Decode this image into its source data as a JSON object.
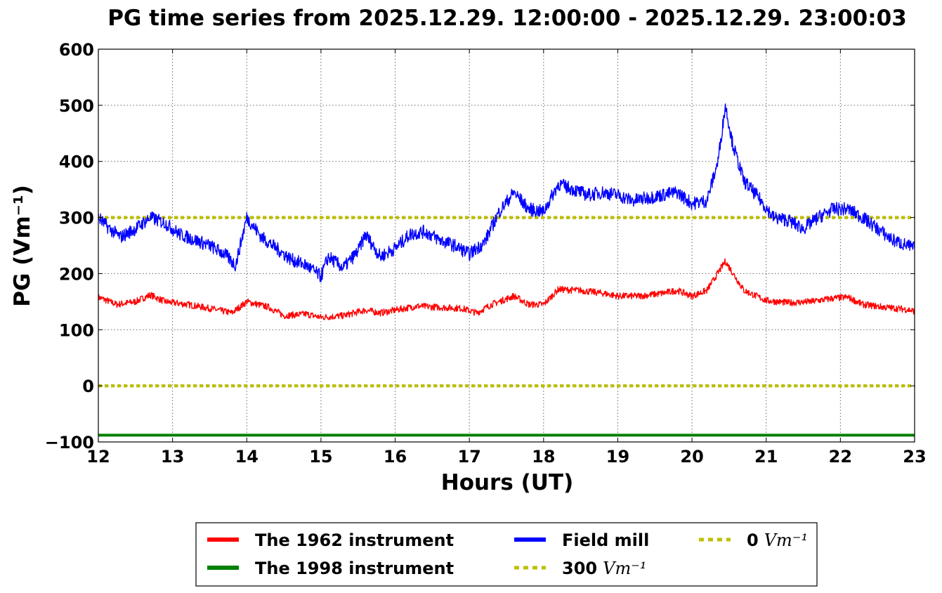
{
  "chart_data": {
    "type": "line",
    "title": "PG time series from 2025.12.29. 12:00:00 - 2025.12.29. 23:00:03",
    "xlabel": "Hours (UT)",
    "ylabel": "PG (Vm⁻¹)",
    "xlim": [
      12,
      23
    ],
    "ylim": [
      -100,
      600
    ],
    "xticks": [
      12,
      13,
      14,
      15,
      16,
      17,
      18,
      19,
      20,
      21,
      22,
      23
    ],
    "yticks": [
      -100,
      0,
      100,
      200,
      300,
      400,
      500,
      600
    ],
    "ytick_labels": [
      "−100",
      "0",
      "100",
      "200",
      "300",
      "400",
      "500",
      "600"
    ],
    "grid": true,
    "legend_position": "bottom-center",
    "legend": [
      {
        "label": "The 1962 instrument",
        "color": "#ff0000",
        "style": "solid"
      },
      {
        "label": "The 1998 instrument",
        "color": "#008000",
        "style": "solid"
      },
      {
        "label": "Field mill",
        "color": "#0000ff",
        "style": "solid"
      },
      {
        "label": "300",
        "unit": "Vm⁻¹",
        "color": "#bfbf00",
        "style": "dotted"
      },
      {
        "label": "0",
        "unit": "Vm⁻¹",
        "color": "#bfbf00",
        "style": "dotted"
      }
    ],
    "series": [
      {
        "name": "The 1962 instrument",
        "color": "#ff0000",
        "x": [
          12.0,
          12.25,
          12.5,
          12.7,
          12.9,
          13.2,
          13.5,
          13.8,
          14.0,
          14.3,
          14.5,
          14.8,
          15.0,
          15.3,
          15.6,
          15.8,
          16.0,
          16.3,
          16.6,
          16.9,
          17.1,
          17.3,
          17.6,
          17.8,
          18.0,
          18.2,
          18.5,
          18.8,
          19.0,
          19.3,
          19.6,
          19.8,
          20.0,
          20.2,
          20.45,
          20.7,
          21.0,
          21.3,
          21.6,
          21.9,
          22.1,
          22.3,
          22.6,
          22.9,
          23.0
        ],
        "y": [
          158,
          145,
          150,
          162,
          150,
          145,
          138,
          130,
          150,
          140,
          125,
          128,
          122,
          125,
          135,
          130,
          135,
          142,
          140,
          138,
          130,
          145,
          160,
          145,
          145,
          172,
          170,
          165,
          160,
          160,
          165,
          170,
          160,
          170,
          222,
          170,
          152,
          148,
          150,
          156,
          158,
          145,
          140,
          136,
          133
        ]
      },
      {
        "name": "The 1998 instrument",
        "color": "#008000",
        "x": [
          12.0,
          23.0
        ],
        "y": [
          -88,
          -88
        ]
      },
      {
        "name": "Field mill",
        "color": "#0000ff",
        "x": [
          12.0,
          12.15,
          12.3,
          12.5,
          12.7,
          12.9,
          13.1,
          13.3,
          13.5,
          13.7,
          13.85,
          14.0,
          14.2,
          14.4,
          14.6,
          14.8,
          15.0,
          15.1,
          15.3,
          15.5,
          15.6,
          15.8,
          16.0,
          16.2,
          16.4,
          16.6,
          16.8,
          17.0,
          17.2,
          17.4,
          17.6,
          17.8,
          18.0,
          18.2,
          18.4,
          18.6,
          18.8,
          19.0,
          19.2,
          19.4,
          19.6,
          19.8,
          20.0,
          20.2,
          20.35,
          20.45,
          20.55,
          20.7,
          20.9,
          21.1,
          21.3,
          21.5,
          21.7,
          21.9,
          22.1,
          22.3,
          22.5,
          22.7,
          22.9,
          23.0
        ],
        "y": [
          300,
          280,
          265,
          280,
          300,
          290,
          270,
          260,
          250,
          235,
          215,
          300,
          265,
          245,
          225,
          215,
          195,
          230,
          210,
          240,
          270,
          230,
          245,
          270,
          275,
          260,
          250,
          235,
          255,
          310,
          345,
          315,
          310,
          360,
          350,
          340,
          345,
          340,
          330,
          335,
          340,
          345,
          325,
          330,
          400,
          500,
          430,
          365,
          335,
          300,
          295,
          280,
          300,
          315,
          315,
          300,
          280,
          260,
          250,
          245
        ]
      }
    ],
    "reference_lines": [
      {
        "y": 300,
        "color": "#bfbf00",
        "style": "dotted"
      },
      {
        "y": 0,
        "color": "#bfbf00",
        "style": "dotted"
      }
    ]
  }
}
